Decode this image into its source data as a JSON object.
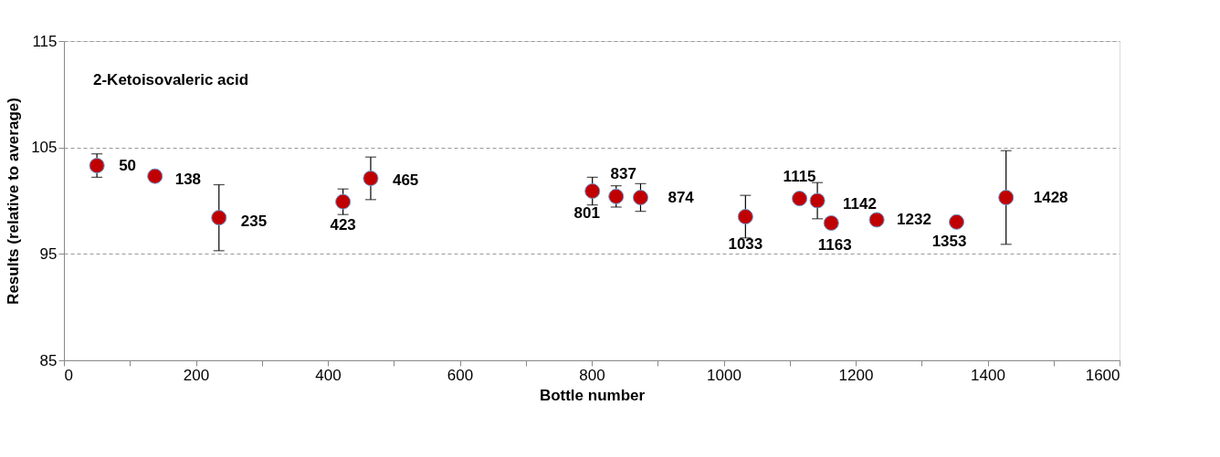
{
  "chart_data": {
    "type": "scatter",
    "title": "2-Ketoisovaleric acid",
    "xlabel": "Bottle number",
    "ylabel": "Results (relative to average)",
    "x": [
      50,
      138,
      235,
      423,
      465,
      801,
      837,
      874,
      1033,
      1115,
      1142,
      1163,
      1232,
      1353,
      1428
    ],
    "series": [
      {
        "color": "#c00000",
        "values": [
          103.3,
          102.3,
          98.4,
          99.9,
          102.1,
          100.9,
          100.4,
          100.3,
          98.5,
          100.2,
          100.0,
          97.9,
          98.2,
          98.0,
          100.3
        ],
        "errors": [
          1.1,
          null,
          3.1,
          1.2,
          2.0,
          1.3,
          1.0,
          1.3,
          2.0,
          null,
          1.7,
          null,
          null,
          null,
          4.4
        ]
      }
    ],
    "annotations": [
      {
        "text": "50",
        "x": 50,
        "y": 103.3
      },
      {
        "text": "138",
        "x": 138,
        "y": 102.3
      },
      {
        "text": "235",
        "x": 235,
        "y": 98.4
      },
      {
        "text": "423",
        "x": 423,
        "y": 99.9
      },
      {
        "text": "465",
        "x": 465,
        "y": 102.1
      },
      {
        "text": "801",
        "x": 801,
        "y": 100.9
      },
      {
        "text": "837",
        "x": 837,
        "y": 100.4
      },
      {
        "text": "874",
        "x": 874,
        "y": 100.3
      },
      {
        "text": "1033",
        "x": 1033,
        "y": 98.5
      },
      {
        "text": "1115",
        "x": 1115,
        "y": 100.2
      },
      {
        "text": "1142",
        "x": 1142,
        "y": 100.0
      },
      {
        "text": "1163",
        "x": 1163,
        "y": 97.9
      },
      {
        "text": "1232",
        "x": 1232,
        "y": 98.2
      },
      {
        "text": "1353",
        "x": 1353,
        "y": 98.0
      },
      {
        "text": "1428",
        "x": 1428,
        "y": 100.3
      }
    ],
    "xlim": [
      0,
      1600
    ],
    "xticks": [
      0,
      {
        "value": 100,
        "label": null
      },
      200,
      {
        "value": 300,
        "label": null
      },
      400,
      {
        "value": 500,
        "label": null
      },
      600,
      {
        "value": 700,
        "label": null
      },
      800,
      {
        "value": 900,
        "label": null
      },
      1000,
      {
        "value": 1100,
        "label": null
      },
      1200,
      {
        "value": 1300,
        "label": null
      },
      1400,
      {
        "value": 1500,
        "label": null
      },
      1600
    ],
    "ylim": [
      85,
      115
    ],
    "yticks": [
      85,
      95,
      105,
      115
    ],
    "grid": "y",
    "marker": "circle"
  }
}
